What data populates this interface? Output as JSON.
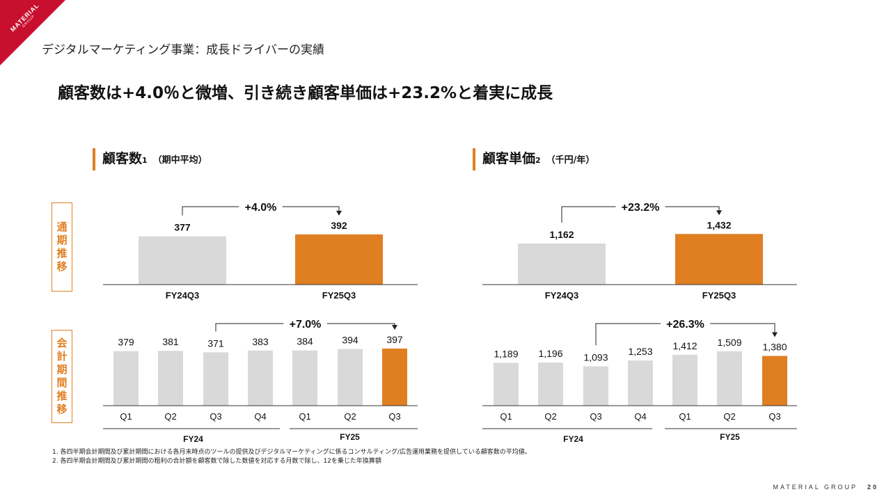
{
  "logo": {
    "line1": "MATERIAL",
    "line2": "GROUP"
  },
  "section_title": "デジタルマーケティング事業：成長ドライバーの実績",
  "headline": "顧客数は+4.0％と微増、引き続き顧客単価は+23.2%と着実に成長",
  "panels": {
    "left": {
      "title": "顧客数",
      "sup": "1",
      "unit": "（期中平均）"
    },
    "right": {
      "title": "顧客単価",
      "sup": "2",
      "unit": "（千円/年）"
    }
  },
  "row_labels": {
    "annual": "通期推移",
    "quarterly": "会計期間推移"
  },
  "colors": {
    "accent": "#e07f22",
    "gray_bar": "#d9d9d9",
    "brand_red": "#c8102e"
  },
  "chart_data": [
    {
      "id": "customers_annual",
      "type": "bar",
      "categories": [
        "FY24Q3",
        "FY25Q3"
      ],
      "values": [
        377,
        392
      ],
      "labels": [
        "377",
        "392"
      ],
      "highlight": [
        false,
        true
      ],
      "change": {
        "label": "+4.0%",
        "from": 0,
        "to": 1
      }
    },
    {
      "id": "customers_quarterly",
      "type": "bar",
      "categories": [
        "Q1",
        "Q2",
        "Q3",
        "Q4",
        "Q1",
        "Q2",
        "Q3"
      ],
      "groups": [
        {
          "label": "FY24",
          "from": 0,
          "to": 3
        },
        {
          "label": "FY25",
          "from": 4,
          "to": 6
        }
      ],
      "values": [
        379,
        381,
        371,
        383,
        384,
        394,
        397
      ],
      "labels": [
        "379",
        "381",
        "371",
        "383",
        "384",
        "394",
        "397"
      ],
      "highlight": [
        false,
        false,
        false,
        false,
        false,
        false,
        true
      ],
      "change": {
        "label": "+7.0%",
        "from": 2,
        "to": 6
      }
    },
    {
      "id": "unit_price_annual",
      "type": "bar",
      "categories": [
        "FY24Q3",
        "FY25Q3"
      ],
      "values": [
        1162,
        1432
      ],
      "labels": [
        "1,162",
        "1,432"
      ],
      "highlight": [
        false,
        true
      ],
      "change": {
        "label": "+23.2%",
        "from": 0,
        "to": 1
      }
    },
    {
      "id": "unit_price_quarterly",
      "type": "bar",
      "categories": [
        "Q1",
        "Q2",
        "Q3",
        "Q4",
        "Q1",
        "Q2",
        "Q3"
      ],
      "groups": [
        {
          "label": "FY24",
          "from": 0,
          "to": 3
        },
        {
          "label": "FY25",
          "from": 4,
          "to": 6
        }
      ],
      "values": [
        1189,
        1196,
        1093,
        1253,
        1412,
        1509,
        1380
      ],
      "labels": [
        "1,189",
        "1,196",
        "1,093",
        "1,253",
        "1,412",
        "1,509",
        "1,380"
      ],
      "highlight": [
        false,
        false,
        false,
        false,
        false,
        false,
        true
      ],
      "change": {
        "label": "+26.3%",
        "from": 2,
        "to": 6
      }
    }
  ],
  "footnotes": [
    "1. 各四半期会計期間及び累計期間における各月末時点のツールの提供及びデジタルマーケティングに係るコンサルティング/広告運用業務を提供している顧客数の平均値。",
    "2. 各四半期会計期間及び累計期間の粗利の合計額を顧客数で除した数値を対応する月数で除し、12を乗じた年換算額"
  ],
  "footer": {
    "company": "MATERIAL GROUP",
    "page": "20"
  }
}
